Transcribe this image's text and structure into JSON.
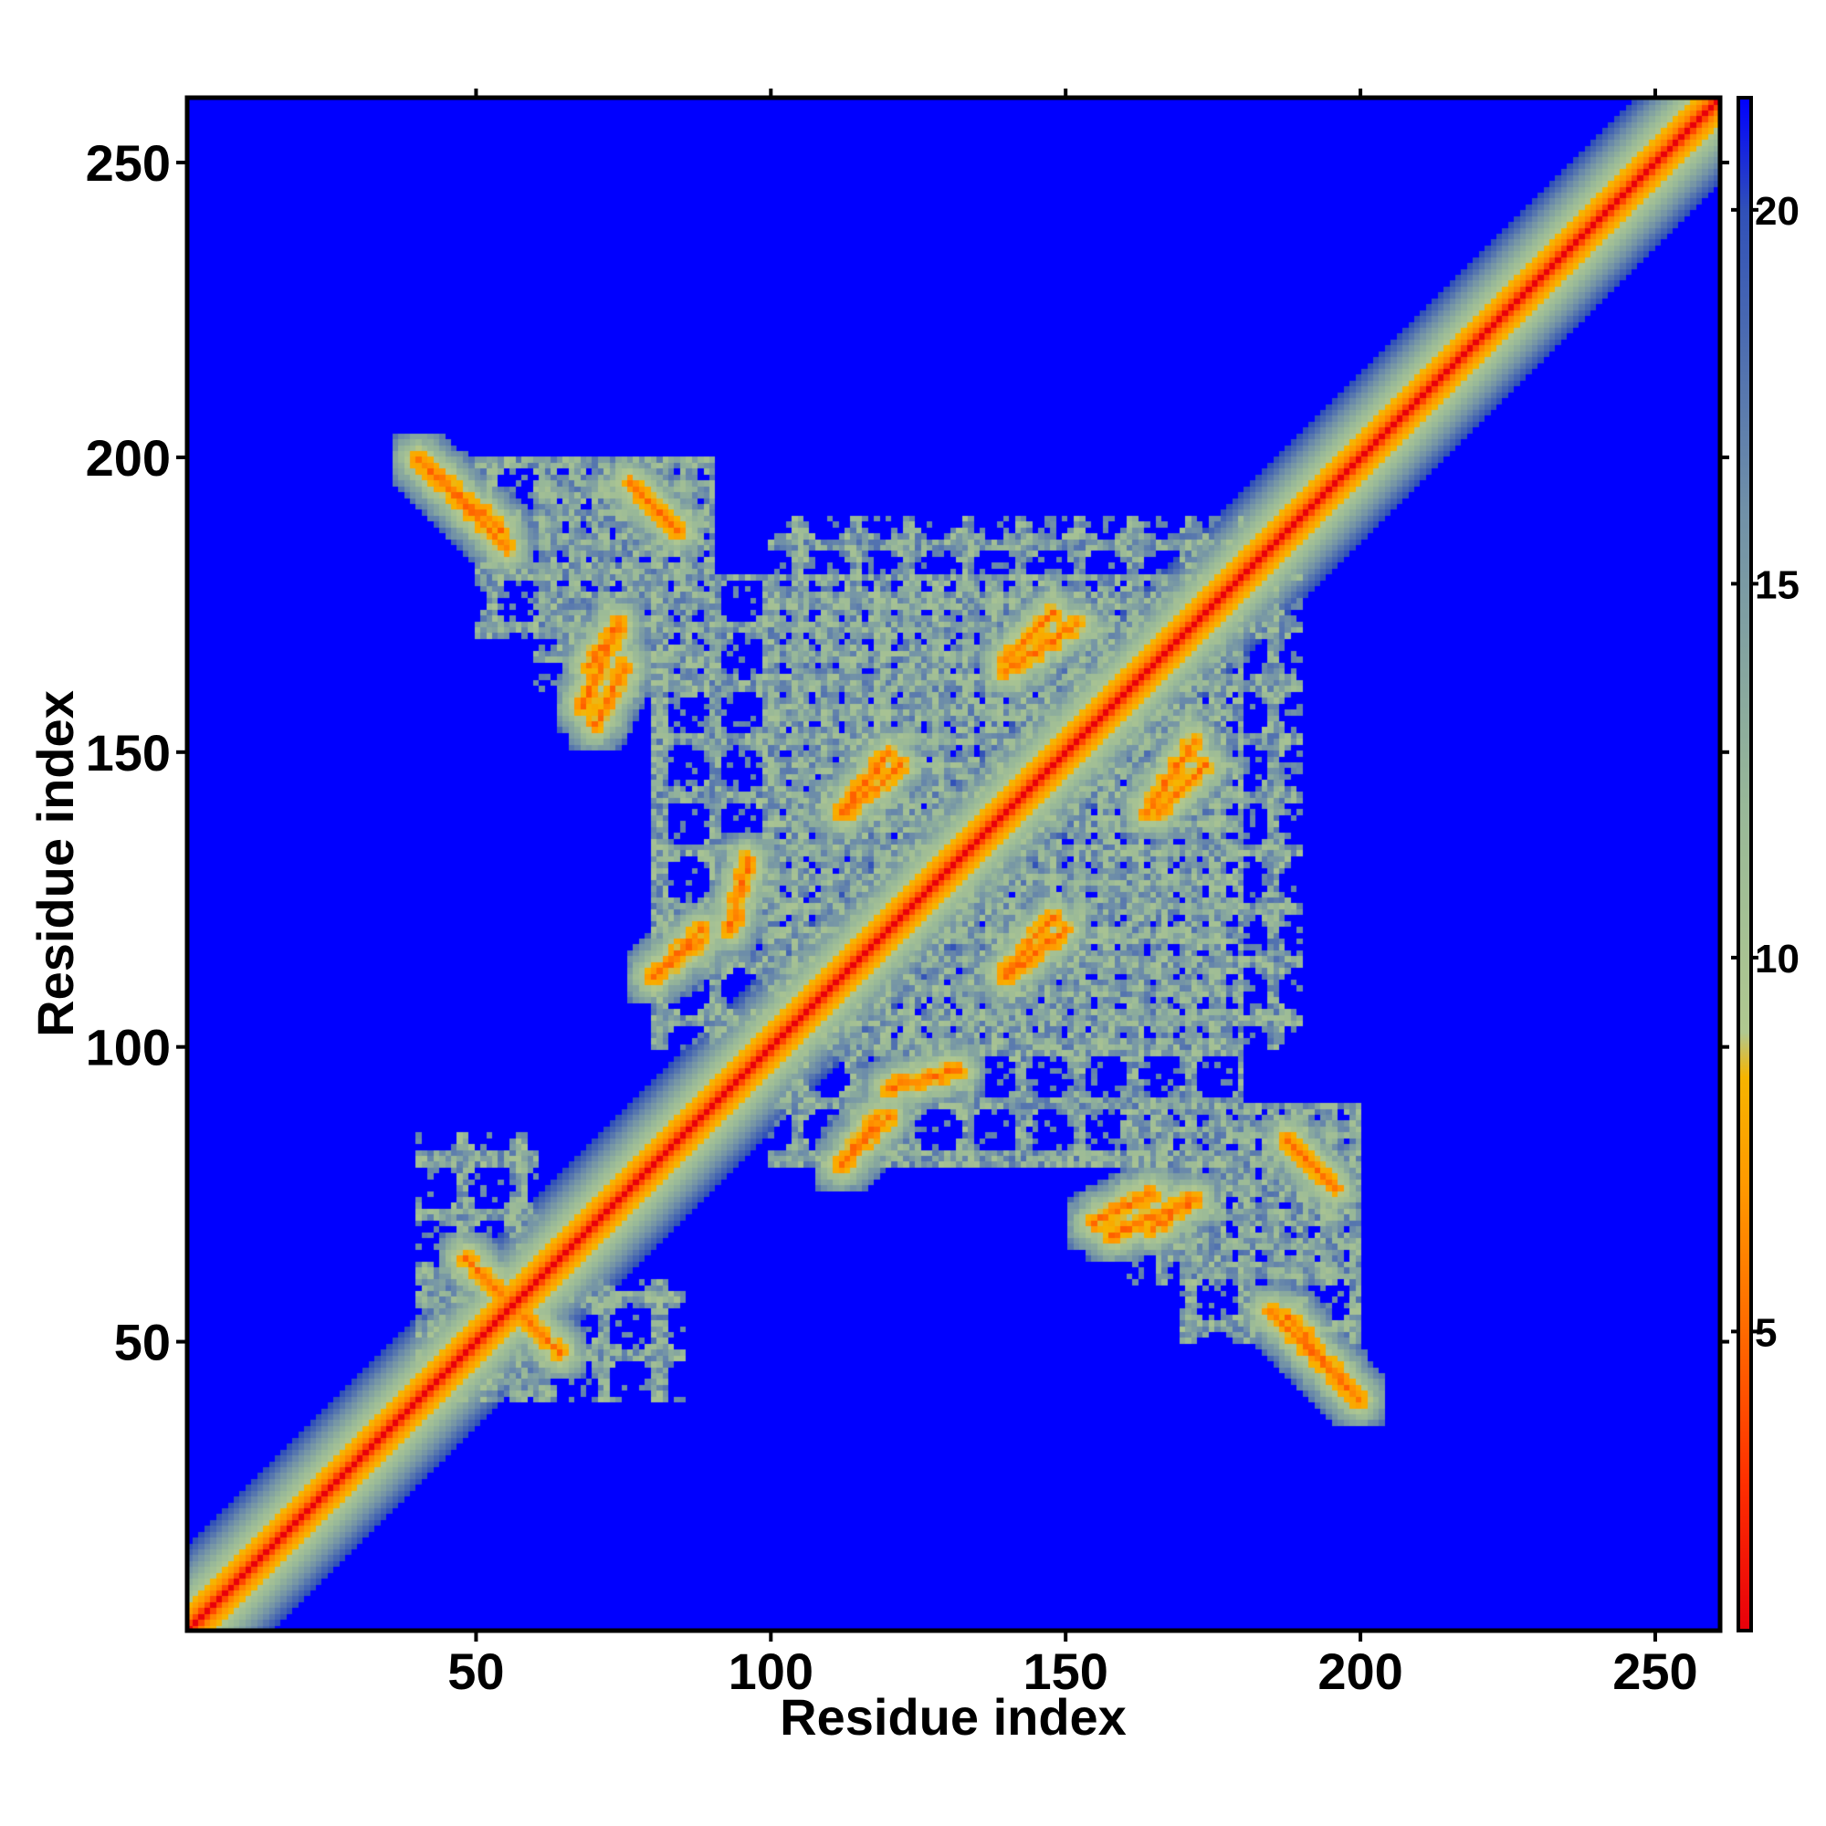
{
  "chart_data": {
    "type": "heatmap",
    "title": "",
    "xlabel": "Residue index",
    "ylabel": "Residue index",
    "xlim": [
      1,
      261
    ],
    "ylim": [
      1,
      261
    ],
    "xticks": [
      50,
      100,
      150,
      200,
      250
    ],
    "yticks": [
      50,
      100,
      150,
      200,
      250
    ],
    "xtick_labels": [
      "50",
      "100",
      "150",
      "200",
      "250"
    ],
    "ytick_labels": [
      "50",
      "100",
      "150",
      "200",
      "250"
    ],
    "n_residues": 261,
    "grid": false,
    "colorbar": {
      "placement": "right",
      "range": [
        1,
        21.5
      ],
      "ticks": [
        5,
        10,
        15,
        20
      ],
      "tick_labels": [
        "5",
        "10",
        "15",
        "20"
      ],
      "colors": [
        {
          "value": 1,
          "color": "#e8000b"
        },
        {
          "value": 3,
          "color": "#ff3000"
        },
        {
          "value": 5,
          "color": "#ff6a00"
        },
        {
          "value": 7,
          "color": "#ff9a00"
        },
        {
          "value": 8.4,
          "color": "#f6b400"
        },
        {
          "value": 9,
          "color": "#b0c890"
        },
        {
          "value": 12,
          "color": "#98b898"
        },
        {
          "value": 16,
          "color": "#7090a8"
        },
        {
          "value": 20,
          "color": "#3050b8"
        },
        {
          "value": 21.5,
          "color": "#0000ff"
        }
      ]
    },
    "features": [
      {
        "kind": "diagonal",
        "from": 1,
        "to": 261,
        "band_width": 6,
        "center_distance": 3.8
      },
      {
        "kind": "strand_pair_antiparallel",
        "x": [
          40,
          55
        ],
        "y": [
          200,
          185
        ]
      },
      {
        "kind": "strand_pair_antiparallel",
        "x": [
          77,
          84
        ],
        "y": [
          195,
          188
        ]
      },
      {
        "kind": "strand_pair_parallel",
        "x": [
          68,
          74
        ],
        "y": [
          158,
          172
        ]
      },
      {
        "kind": "strand_pair_antiparallel",
        "x": [
          188,
          200
        ],
        "y": [
          54,
          40
        ]
      },
      {
        "kind": "strand_pair_antiparallel",
        "x": [
          48,
          64
        ],
        "y": [
          64,
          48
        ]
      },
      {
        "kind": "strand_pair_parallel",
        "x": [
          113,
          122
        ],
        "y": [
          140,
          148
        ]
      },
      {
        "kind": "strand_pair_parallel",
        "x": [
          140,
          150
        ],
        "y": [
          112,
          120
        ]
      },
      {
        "kind": "strand_pair_parallel",
        "x": [
          140,
          152
        ],
        "y": [
          164,
          172
        ]
      },
      {
        "kind": "strand_pair_parallel",
        "x": [
          166,
          174
        ],
        "y": [
          140,
          148
        ]
      },
      {
        "kind": "strand_pair_parallel",
        "x": [
          80,
          88
        ],
        "y": [
          112,
          118
        ]
      },
      {
        "kind": "strand_pair_parallel",
        "x": [
          112,
          120
        ],
        "y": [
          80,
          88
        ]
      },
      {
        "kind": "strand_pair_parallel",
        "x": [
          120,
          132
        ],
        "y": [
          93,
          96
        ]
      },
      {
        "kind": "strand_pair_parallel",
        "x": [
          155,
          165
        ],
        "y": [
          70,
          75
        ]
      },
      {
        "kind": "strand_pair_parallel",
        "x": [
          165,
          172
        ],
        "y": [
          69,
          74
        ]
      },
      {
        "kind": "strand_pair_antiparallel",
        "x": [
          188,
          196
        ],
        "y": [
          84,
          76
        ]
      },
      {
        "kind": "ring_cluster",
        "x": [
          60,
          90
        ],
        "y": [
          160,
          200
        ]
      },
      {
        "kind": "ring_cluster",
        "x": [
          100,
          180
        ],
        "y": [
          80,
          190
        ]
      },
      {
        "kind": "ring_cluster",
        "x": [
          170,
          200
        ],
        "y": [
          50,
          90
        ]
      },
      {
        "kind": "ring_cluster",
        "x": [
          40,
          60
        ],
        "y": [
          40,
          85
        ]
      }
    ]
  }
}
